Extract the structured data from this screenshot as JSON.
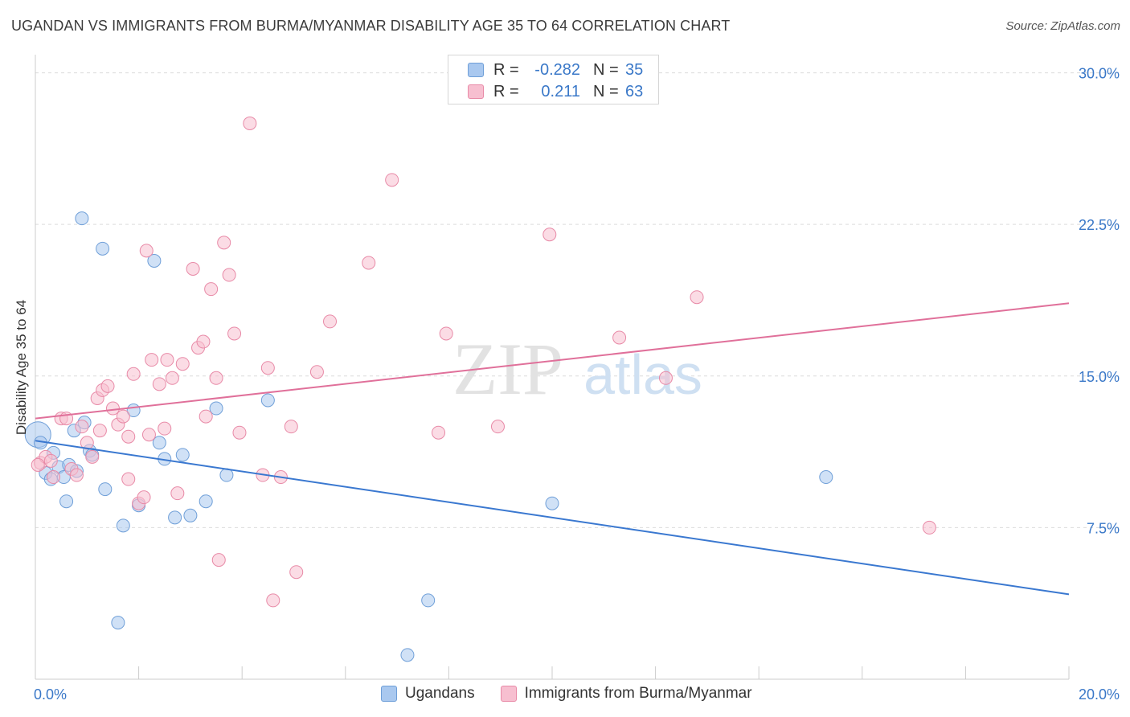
{
  "header": {
    "title": "UGANDAN VS IMMIGRANTS FROM BURMA/MYANMAR DISABILITY AGE 35 TO 64 CORRELATION CHART",
    "source": "Source: ZipAtlas.com"
  },
  "watermark": {
    "zip": "ZIP",
    "atlas": "atlas"
  },
  "stats_legend": [
    {
      "r_label": "R =",
      "r_value": "-0.282",
      "n_label": "N =",
      "n_value": "35",
      "color": "#a9c8ef",
      "border": "#6f9fd8"
    },
    {
      "r_label": "R =",
      "r_value": "0.211",
      "n_label": "N =",
      "n_value": "63",
      "color": "#f7bfd0",
      "border": "#e88aa7"
    }
  ],
  "chart_data": {
    "type": "scatter",
    "ylabel": "Disability Age 35 to 64",
    "xlim": [
      0,
      20
    ],
    "ylim": [
      0,
      30.5
    ],
    "x_tick_labels": [
      {
        "value": 0,
        "label": "0.0%"
      },
      {
        "value": 20,
        "label": "20.0%"
      }
    ],
    "y_tick_labels": [
      {
        "value": 7.5,
        "label": "7.5%"
      },
      {
        "value": 15,
        "label": "15.0%"
      },
      {
        "value": 22.5,
        "label": "22.5%"
      },
      {
        "value": 30,
        "label": "30.0%"
      }
    ],
    "grid": "horizontal dashed",
    "legend_position": "bottom-center",
    "series": [
      {
        "name": "Ugandans",
        "color": "#6f9fd8",
        "fill": "#a9c8ef",
        "trend": {
          "x": [
            0,
            20
          ],
          "y": [
            11.8,
            4.2
          ],
          "color": "#3a78d0"
        },
        "points": [
          [
            0.05,
            12.1
          ],
          [
            0.1,
            11.7
          ],
          [
            0.2,
            10.2
          ],
          [
            0.35,
            11.2
          ],
          [
            0.45,
            10.5
          ],
          [
            0.55,
            10.0
          ],
          [
            0.6,
            8.8
          ],
          [
            0.65,
            10.6
          ],
          [
            0.75,
            12.3
          ],
          [
            0.8,
            10.3
          ],
          [
            0.9,
            22.8
          ],
          [
            0.95,
            12.7
          ],
          [
            1.05,
            11.3
          ],
          [
            1.1,
            11.1
          ],
          [
            1.3,
            21.3
          ],
          [
            1.35,
            9.4
          ],
          [
            1.6,
            2.8
          ],
          [
            1.7,
            7.6
          ],
          [
            1.9,
            13.3
          ],
          [
            2.0,
            8.6
          ],
          [
            2.3,
            20.7
          ],
          [
            2.4,
            11.7
          ],
          [
            2.5,
            10.9
          ],
          [
            2.7,
            8.0
          ],
          [
            2.85,
            11.1
          ],
          [
            3.0,
            8.1
          ],
          [
            3.3,
            8.8
          ],
          [
            3.5,
            13.4
          ],
          [
            3.7,
            10.1
          ],
          [
            4.5,
            13.8
          ],
          [
            7.6,
            3.9
          ],
          [
            7.2,
            1.2
          ],
          [
            10.0,
            8.7
          ],
          [
            15.3,
            10.0
          ],
          [
            0.3,
            9.9
          ]
        ]
      },
      {
        "name": "Immigrants from Burma/Myanmar",
        "color": "#e88aa7",
        "fill": "#f7bfd0",
        "trend": {
          "x": [
            0,
            20
          ],
          "y": [
            12.9,
            18.6
          ],
          "color": "#e0709a"
        },
        "points": [
          [
            0.1,
            10.7
          ],
          [
            0.2,
            11.0
          ],
          [
            0.3,
            10.8
          ],
          [
            0.35,
            10.0
          ],
          [
            0.5,
            12.9
          ],
          [
            0.6,
            12.9
          ],
          [
            0.7,
            10.4
          ],
          [
            0.8,
            10.1
          ],
          [
            0.9,
            12.5
          ],
          [
            1.0,
            11.7
          ],
          [
            1.1,
            11.0
          ],
          [
            1.2,
            13.9
          ],
          [
            1.25,
            12.3
          ],
          [
            1.3,
            14.3
          ],
          [
            1.4,
            14.5
          ],
          [
            1.5,
            13.4
          ],
          [
            1.6,
            12.6
          ],
          [
            1.7,
            13.0
          ],
          [
            1.8,
            12.0
          ],
          [
            1.8,
            9.9
          ],
          [
            1.9,
            15.1
          ],
          [
            2.0,
            8.7
          ],
          [
            2.1,
            9.0
          ],
          [
            2.15,
            21.2
          ],
          [
            2.2,
            12.1
          ],
          [
            2.25,
            15.8
          ],
          [
            2.4,
            14.6
          ],
          [
            2.5,
            12.4
          ],
          [
            2.55,
            15.8
          ],
          [
            2.65,
            14.9
          ],
          [
            2.75,
            9.2
          ],
          [
            2.85,
            15.6
          ],
          [
            3.05,
            20.3
          ],
          [
            3.15,
            16.4
          ],
          [
            3.25,
            16.7
          ],
          [
            3.3,
            13.0
          ],
          [
            3.4,
            19.3
          ],
          [
            3.5,
            14.9
          ],
          [
            3.55,
            5.9
          ],
          [
            3.65,
            21.6
          ],
          [
            3.75,
            20.0
          ],
          [
            3.85,
            17.1
          ],
          [
            3.95,
            12.2
          ],
          [
            4.15,
            27.5
          ],
          [
            4.4,
            10.1
          ],
          [
            4.5,
            15.4
          ],
          [
            4.6,
            3.9
          ],
          [
            4.75,
            10.0
          ],
          [
            4.95,
            12.5
          ],
          [
            5.05,
            5.3
          ],
          [
            5.45,
            15.2
          ],
          [
            5.7,
            17.7
          ],
          [
            6.45,
            20.6
          ],
          [
            6.9,
            24.7
          ],
          [
            7.8,
            12.2
          ],
          [
            7.95,
            17.1
          ],
          [
            8.95,
            12.5
          ],
          [
            9.95,
            22.0
          ],
          [
            11.3,
            16.9
          ],
          [
            12.2,
            14.9
          ],
          [
            12.8,
            18.9
          ],
          [
            17.3,
            7.5
          ],
          [
            0.05,
            10.6
          ]
        ]
      }
    ]
  }
}
